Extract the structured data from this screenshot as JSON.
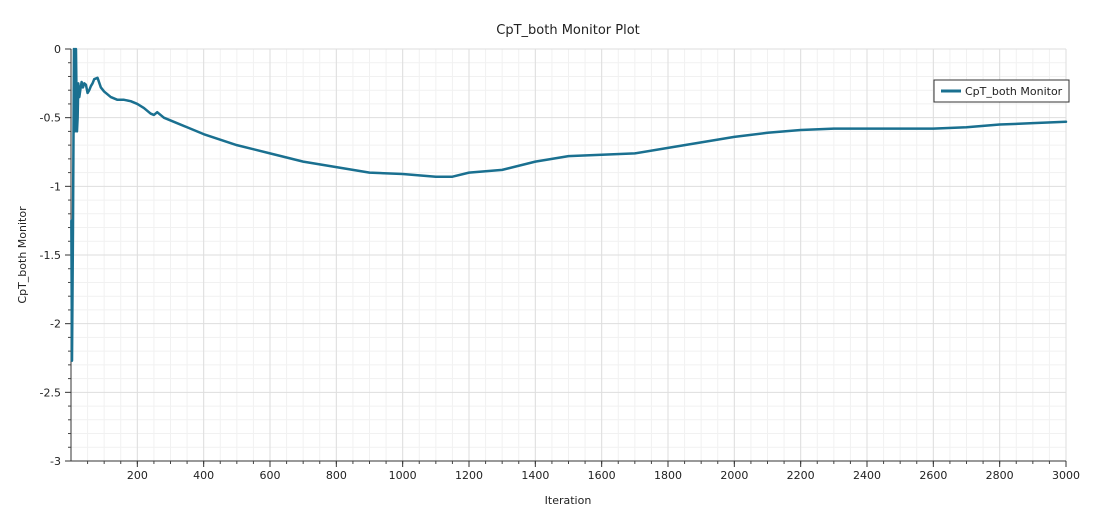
{
  "chart_data": {
    "type": "line",
    "title": "CpT_both Monitor Plot",
    "xlabel": "Iteration",
    "ylabel": "CpT_both Monitor",
    "xlim": [
      0,
      3000
    ],
    "ylim": [
      -3,
      0
    ],
    "x_ticks": [
      200,
      400,
      600,
      800,
      1000,
      1200,
      1400,
      1600,
      1800,
      2000,
      2200,
      2400,
      2600,
      2800,
      3000
    ],
    "x_tick_labels": [
      "200",
      "400",
      "600",
      "800",
      "1000",
      "1200",
      "1400",
      "1600",
      "1800",
      "2000",
      "2200",
      "2400",
      "2600",
      "2800",
      "3000"
    ],
    "y_ticks": [
      0,
      -0.5,
      -1,
      -1.5,
      -2,
      -2.5,
      -3
    ],
    "y_tick_labels": [
      "0",
      "-0.5",
      "-1",
      "-1.5",
      "-2",
      "-2.5",
      "-3"
    ],
    "grid": true,
    "legend_position": "top-right",
    "series": [
      {
        "name": "CpT_both Monitor",
        "color": "#1a7090",
        "x": [
          1,
          3,
          6,
          9,
          12,
          15,
          18,
          20,
          22,
          25,
          28,
          32,
          36,
          40,
          45,
          50,
          55,
          60,
          65,
          70,
          80,
          90,
          100,
          110,
          120,
          140,
          160,
          180,
          200,
          220,
          240,
          250,
          260,
          280,
          300,
          350,
          400,
          450,
          500,
          600,
          700,
          800,
          900,
          1000,
          1050,
          1100,
          1150,
          1200,
          1300,
          1400,
          1500,
          1600,
          1700,
          1800,
          1900,
          2000,
          2100,
          2200,
          2300,
          2400,
          2500,
          2600,
          2700,
          2800,
          2900,
          3000
        ],
        "y": [
          -1.25,
          -2.27,
          -1.3,
          0.0,
          -0.6,
          0.0,
          -0.6,
          -0.5,
          -0.25,
          -0.35,
          -0.3,
          -0.24,
          -0.28,
          -0.25,
          -0.26,
          -0.32,
          -0.3,
          -0.27,
          -0.25,
          -0.22,
          -0.21,
          -0.28,
          -0.31,
          -0.33,
          -0.35,
          -0.37,
          -0.37,
          -0.38,
          -0.4,
          -0.43,
          -0.47,
          -0.48,
          -0.46,
          -0.5,
          -0.52,
          -0.57,
          -0.62,
          -0.66,
          -0.7,
          -0.76,
          -0.82,
          -0.86,
          -0.9,
          -0.91,
          -0.92,
          -0.93,
          -0.93,
          -0.9,
          -0.88,
          -0.82,
          -0.78,
          -0.77,
          -0.76,
          -0.72,
          -0.68,
          -0.64,
          -0.61,
          -0.59,
          -0.58,
          -0.58,
          -0.58,
          -0.58,
          -0.57,
          -0.55,
          -0.54,
          -0.53
        ]
      }
    ]
  }
}
